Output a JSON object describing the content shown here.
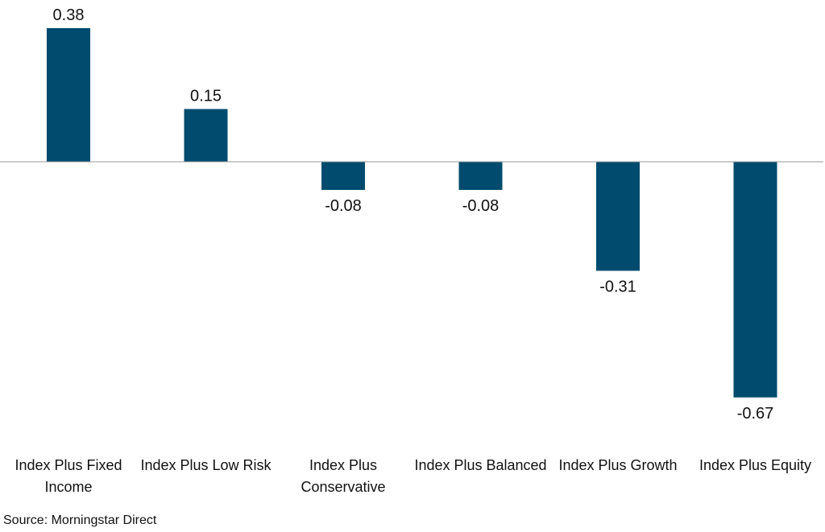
{
  "chart_data": {
    "type": "bar",
    "categories": [
      "Index Plus Fixed Income",
      "Index Plus Low Risk",
      "Index Plus Conservative",
      "Index Plus Balanced",
      "Index Plus Growth",
      "Index Plus Equity"
    ],
    "category_label_lines": [
      [
        "Index Plus Fixed",
        "Income"
      ],
      [
        "Index Plus Low Risk"
      ],
      [
        "Index Plus",
        "Conservative"
      ],
      [
        "Index Plus Balanced"
      ],
      [
        "Index Plus Growth"
      ],
      [
        "Index Plus Equity"
      ]
    ],
    "values": [
      0.38,
      0.15,
      -0.08,
      -0.08,
      -0.31,
      -0.67
    ],
    "value_labels": [
      "0.38",
      "0.15",
      "-0.08",
      "-0.08",
      "-0.31",
      "-0.67"
    ],
    "title": "",
    "xlabel": "",
    "ylabel": "",
    "ylim": [
      -0.7,
      0.4
    ],
    "grid": false,
    "legend": "none",
    "bar_color": "#004b6e",
    "axis_color": "#999999"
  },
  "footer": {
    "source": "Source: Morningstar Direct"
  }
}
